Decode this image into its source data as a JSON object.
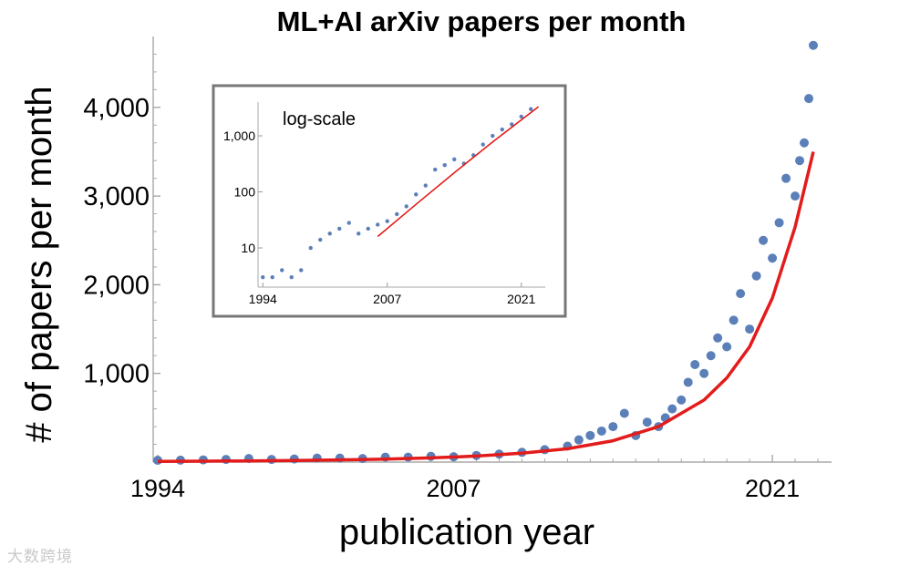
{
  "watermark": "大数跨境",
  "chart_data": [
    {
      "type": "scatter",
      "title": "ML+AI arXiv papers per month",
      "xlabel": "publication year",
      "ylabel": "# of papers per month",
      "xlim": [
        1993.8,
        2023.2
      ],
      "ylim": [
        0,
        4800
      ],
      "x_ticks": [
        1994,
        2007,
        2021
      ],
      "x_tick_labels": [
        "1994",
        "2007",
        "2021"
      ],
      "y_ticks": [
        1000,
        2000,
        3000,
        4000
      ],
      "y_tick_labels": [
        "1,000",
        "2,000",
        "3,000",
        "4,000"
      ],
      "grid": false,
      "series": [
        {
          "kind": "points",
          "color": "#5b7fb8",
          "x": [
            1994.0,
            1995.0,
            1996.0,
            1997.0,
            1998.0,
            1999.0,
            2000.0,
            2001.0,
            2002.0,
            2003.0,
            2004.0,
            2005.0,
            2006.0,
            2007.0,
            2008.0,
            2009.0,
            2010.0,
            2011.0,
            2012.0,
            2012.5,
            2013.0,
            2013.5,
            2014.0,
            2014.5,
            2015.0,
            2015.5,
            2016.0,
            2016.3,
            2016.6,
            2017.0,
            2017.3,
            2017.6,
            2018.0,
            2018.3,
            2018.6,
            2019.0,
            2019.3,
            2019.6,
            2020.0,
            2020.3,
            2020.6,
            2021.0,
            2021.3,
            2021.6,
            2022.0,
            2022.2,
            2022.4,
            2022.6,
            2022.8
          ],
          "y": [
            20,
            22,
            25,
            30,
            40,
            30,
            35,
            45,
            45,
            40,
            55,
            55,
            65,
            60,
            75,
            90,
            110,
            140,
            180,
            250,
            300,
            350,
            400,
            550,
            300,
            450,
            400,
            500,
            600,
            700,
            900,
            1100,
            1000,
            1200,
            1400,
            1300,
            1600,
            1900,
            1500,
            2100,
            2500,
            2300,
            2700,
            3200,
            3000,
            3400,
            3600,
            4100,
            4700
          ]
        },
        {
          "kind": "fit",
          "color": "#e41b1b",
          "x": [
            1994,
            1996,
            1998,
            2000,
            2002,
            2004,
            2006,
            2008,
            2010,
            2012,
            2014,
            2016,
            2018,
            2019,
            2020,
            2021,
            2022,
            2022.8
          ],
          "y": [
            8,
            10,
            13,
            18,
            25,
            34,
            47,
            68,
            100,
            150,
            240,
            400,
            700,
            950,
            1300,
            1850,
            2650,
            3500
          ]
        }
      ]
    },
    {
      "type": "scatter",
      "title": "log-scale",
      "yscale": "log",
      "xlim": [
        1993.5,
        2023.5
      ],
      "ylim": [
        2,
        4000
      ],
      "x_ticks": [
        1994,
        2007,
        2021
      ],
      "x_tick_labels": [
        "1994",
        "2007",
        "2021"
      ],
      "y_ticks": [
        10,
        100,
        1000
      ],
      "y_tick_labels": [
        "10",
        "100",
        "1,000"
      ],
      "series": [
        {
          "kind": "points",
          "color": "#5b7fb8",
          "x": [
            1994.0,
            1995.0,
            1996.0,
            1997.0,
            1998.0,
            1999.0,
            2000.0,
            2001.0,
            2002.0,
            2003.0,
            2004.0,
            2005.0,
            2006.0,
            2007.0,
            2008.0,
            2009.0,
            2010.0,
            2011.0,
            2012.0,
            2013.0,
            2014.0,
            2015.0,
            2016.0,
            2017.0,
            2018.0,
            2019.0,
            2020.0,
            2021.0,
            2022.0
          ],
          "y": [
            3,
            3,
            4,
            3,
            4,
            10,
            14,
            18,
            22,
            28,
            18,
            22,
            26,
            30,
            40,
            55,
            90,
            130,
            250,
            300,
            380,
            320,
            450,
            700,
            1000,
            1300,
            1600,
            2200,
            3000
          ]
        },
        {
          "kind": "fit",
          "color": "#e41b1b",
          "x": [
            2006,
            2010,
            2014,
            2018,
            2022.8
          ],
          "y": [
            16,
            60,
            220,
            780,
            3300
          ]
        }
      ]
    }
  ]
}
